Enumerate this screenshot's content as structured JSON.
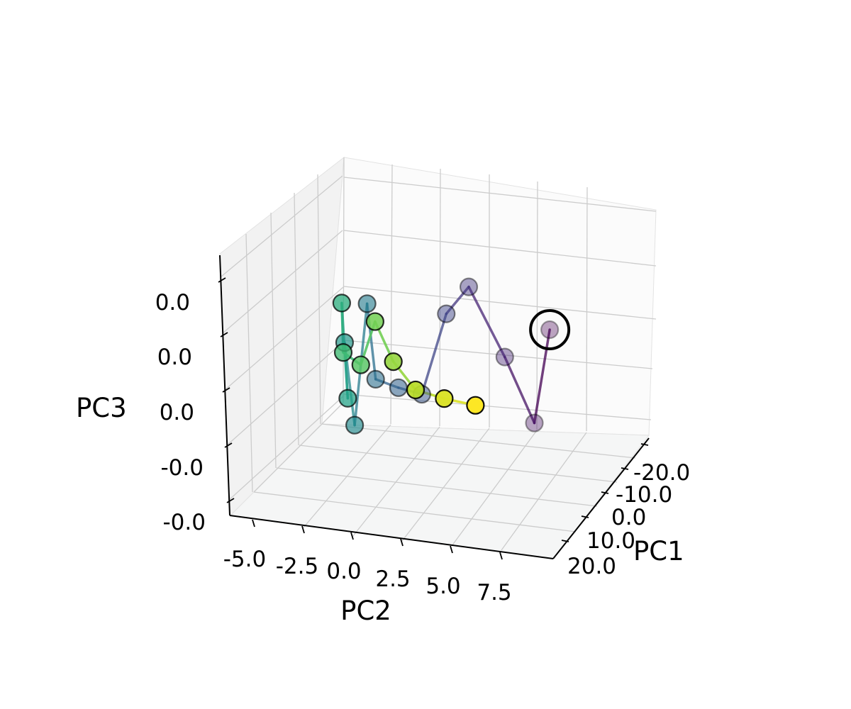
{
  "chart_data": {
    "type": "scatter3d",
    "title": "",
    "xlabel": "PC1",
    "ylabel": "PC2",
    "zlabel": "PC3",
    "pc1_ticks": [
      "-20.0",
      "-10.0",
      "0.0",
      "10.0",
      "20.0"
    ],
    "pc2_ticks": [
      "-5.0",
      "-2.5",
      "0.0",
      "2.5",
      "5.0",
      "7.5"
    ],
    "pc3_ticks": [
      "-0.0",
      "-0.0",
      "0.0",
      "0.0",
      "0.0"
    ],
    "colormap": "viridis",
    "grid": true,
    "points": [
      {
        "step": 0,
        "pc1": 16,
        "pc2": 8.6,
        "pc3": 0.018,
        "highlighted": true
      },
      {
        "step": 1,
        "pc1": 2,
        "pc2": 7.6,
        "pc3": -0.018
      },
      {
        "step": 2,
        "pc1": -10,
        "pc2": 5.9,
        "pc3": 0.0
      },
      {
        "step": 3,
        "pc1": -20,
        "pc2": 3.9,
        "pc3": 0.02
      },
      {
        "step": 4,
        "pc1": -10,
        "pc2": 2.9,
        "pc3": 0.014
      },
      {
        "step": 5,
        "pc1": 0,
        "pc2": 1.8,
        "pc3": -0.01
      },
      {
        "step": 6,
        "pc1": 0,
        "pc2": 0.6,
        "pc3": -0.008
      },
      {
        "step": 7,
        "pc1": -2,
        "pc2": -0.6,
        "pc3": -0.006
      },
      {
        "step": 8,
        "pc1": -6,
        "pc2": -1.1,
        "pc3": 0.018
      },
      {
        "step": 9,
        "pc1": 3,
        "pc2": -1.6,
        "pc3": -0.02
      },
      {
        "step": 10,
        "pc1": 4,
        "pc2": -2.1,
        "pc3": 0.008
      },
      {
        "step": 11,
        "pc1": 0,
        "pc2": -2.0,
        "pc3": -0.012
      },
      {
        "step": 12,
        "pc1": -6,
        "pc2": -2.4,
        "pc3": 0.018
      },
      {
        "step": 13,
        "pc1": 2,
        "pc2": -2.2,
        "pc3": 0.004
      },
      {
        "step": 14,
        "pc1": 2,
        "pc2": -1.3,
        "pc3": 0.0
      },
      {
        "step": 15,
        "pc1": 0,
        "pc2": -0.6,
        "pc3": 0.014
      },
      {
        "step": 16,
        "pc1": 4,
        "pc2": 0.4,
        "pc3": 0.002
      },
      {
        "step": 17,
        "pc1": 8,
        "pc2": 1.6,
        "pc3": -0.006
      },
      {
        "step": 18,
        "pc1": 10,
        "pc2": 3.1,
        "pc3": -0.008
      },
      {
        "step": 19,
        "pc1": 10,
        "pc2": 4.7,
        "pc3": -0.01
      }
    ]
  }
}
